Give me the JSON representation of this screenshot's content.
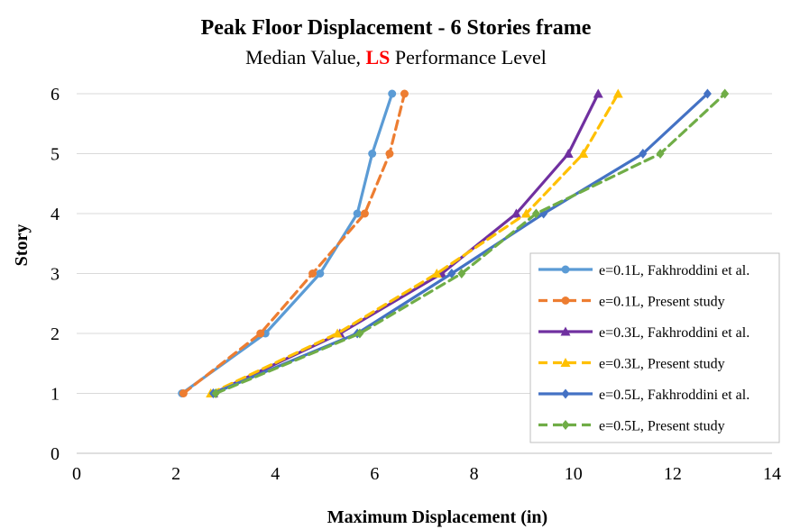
{
  "chart_data": {
    "type": "line",
    "title": "Peak Floor Displacement - 6 Stories frame",
    "subtitle_prefix": "Median Value, ",
    "subtitle_highlight": "LS",
    "subtitle_suffix": " Performance Level",
    "xlabel": "Maximum Displacement (in)",
    "ylabel": "Story",
    "xlim": [
      0,
      14
    ],
    "ylim": [
      0,
      6
    ],
    "xticks": [
      "0",
      "2",
      "4",
      "6",
      "8",
      "10",
      "12",
      "14"
    ],
    "yticks": [
      "0",
      "1",
      "2",
      "3",
      "4",
      "5",
      "6"
    ],
    "grid": "horizontal",
    "legend_position": "right",
    "series": [
      {
        "name": "e=0.1L, Fakhroddini et al.",
        "color": "#5B9BD5",
        "dash": "solid",
        "marker": "circle",
        "x": [
          2.12,
          3.8,
          4.9,
          5.65,
          5.95,
          6.35
        ],
        "y": [
          1,
          2,
          3,
          4,
          5,
          6
        ]
      },
      {
        "name": "e=0.1L, Present study",
        "color": "#ED7D31",
        "dash": "dashed",
        "marker": "circle",
        "x": [
          2.15,
          3.7,
          4.75,
          5.8,
          6.3,
          6.6
        ],
        "y": [
          1,
          2,
          3,
          4,
          5,
          6
        ]
      },
      {
        "name": "e=0.3L, Fakhroddini et al.",
        "color": "#7030A0",
        "dash": "solid",
        "marker": "triangle",
        "x": [
          2.75,
          5.3,
          7.35,
          8.85,
          9.9,
          10.5
        ],
        "y": [
          1,
          2,
          3,
          4,
          5,
          6
        ]
      },
      {
        "name": "e=0.3L, Present study",
        "color": "#FFC000",
        "dash": "dashed",
        "marker": "triangle",
        "x": [
          2.7,
          5.25,
          7.25,
          9.05,
          10.2,
          10.9
        ],
        "y": [
          1,
          2,
          3,
          4,
          5,
          6
        ]
      },
      {
        "name": "e=0.5L, Fakhroddini et al.",
        "color": "#4472C4",
        "dash": "solid",
        "marker": "diamond",
        "x": [
          2.75,
          5.65,
          7.55,
          9.4,
          11.4,
          12.7
        ],
        "y": [
          1,
          2,
          3,
          4,
          5,
          6
        ]
      },
      {
        "name": "e=0.5L, Present study",
        "color": "#70AD47",
        "dash": "dashed",
        "marker": "diamond",
        "x": [
          2.8,
          5.7,
          7.75,
          9.25,
          11.75,
          13.05
        ],
        "y": [
          1,
          2,
          3,
          4,
          5,
          6
        ]
      }
    ]
  },
  "colors": {
    "highlight": "#FF0000",
    "grid": "#D9D9D9",
    "axis": "#BFBFBF"
  }
}
